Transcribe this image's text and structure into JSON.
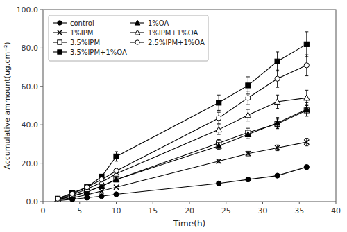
{
  "chart_data": {
    "type": "line",
    "x_label": "Time(h)",
    "y_label": "Accumulative ammount(ug.cm⁻²)",
    "x": [
      2,
      4,
      6,
      8,
      10,
      24,
      28,
      32,
      36
    ],
    "series": [
      {
        "name": "control",
        "color": "black",
        "marker": "circle-filled",
        "values": [
          0.5,
          1.2,
          2.0,
          2.8,
          3.8,
          9.5,
          11.5,
          13.5,
          18.0
        ],
        "errors": [
          0.1,
          0.2,
          0.2,
          0.3,
          0.4,
          0.5,
          0.7,
          0.8,
          1.0
        ]
      },
      {
        "name": "1%IPM",
        "color": "black",
        "marker": "x",
        "values": [
          0.8,
          2.0,
          3.5,
          5.5,
          7.5,
          21.0,
          25.0,
          28.0,
          31.0
        ],
        "errors": [
          0.1,
          0.2,
          0.3,
          0.4,
          0.5,
          1.0,
          1.2,
          1.5,
          2.0
        ]
      },
      {
        "name": "3.5%IPM",
        "color": "black",
        "marker": "square-open",
        "values": [
          1.0,
          2.8,
          5.2,
          8.0,
          11.5,
          30.5,
          36.0,
          40.5,
          47.5
        ],
        "errors": [
          0.1,
          0.3,
          0.4,
          0.6,
          0.8,
          1.8,
          2.2,
          2.5,
          3.0
        ]
      },
      {
        "name": "3.5%IPM+1%OA",
        "color": "black",
        "marker": "square-filled",
        "values": [
          1.5,
          4.5,
          7.5,
          13.0,
          23.5,
          51.5,
          60.5,
          73.0,
          82.0
        ],
        "errors": [
          0.2,
          0.5,
          0.8,
          1.2,
          2.5,
          4.0,
          4.5,
          5.0,
          6.5
        ]
      },
      {
        "name": "1%OA",
        "color": "black",
        "marker": "triangle-filled",
        "values": [
          1.0,
          2.8,
          5.0,
          8.0,
          11.5,
          29.0,
          35.0,
          41.0,
          48.0
        ],
        "errors": [
          0.1,
          0.3,
          0.4,
          0.6,
          0.8,
          1.8,
          2.2,
          2.8,
          3.5
        ]
      },
      {
        "name": "1%IPM+1%OA",
        "color": "black",
        "marker": "triangle-open",
        "values": [
          1.2,
          3.5,
          6.5,
          10.0,
          14.5,
          37.5,
          45.0,
          52.0,
          54.0
        ],
        "errors": [
          0.15,
          0.4,
          0.6,
          0.8,
          1.0,
          2.5,
          3.0,
          3.5,
          4.0
        ]
      },
      {
        "name": "2.5%IPM+1%OA",
        "color": "black",
        "marker": "circle-open",
        "values": [
          1.5,
          4.0,
          7.5,
          11.5,
          16.0,
          43.5,
          54.0,
          64.0,
          71.0
        ],
        "errors": [
          0.2,
          0.4,
          0.7,
          1.0,
          1.3,
          3.0,
          3.5,
          4.5,
          5.5
        ]
      }
    ],
    "xlim": [
      0,
      40
    ],
    "ylim": [
      0,
      100.0
    ],
    "xticks": [
      0,
      5,
      10,
      15,
      20,
      25,
      30,
      35,
      40
    ],
    "yticks": [
      {
        "value": 0.0,
        "label": "0.0"
      },
      {
        "value": 20.0,
        "label": "20.0"
      },
      {
        "value": 40.0,
        "label": "40.0"
      },
      {
        "value": 60.0,
        "label": "60.0"
      },
      {
        "value": 80.0,
        "label": "80.0"
      },
      {
        "value": 100.0,
        "label": "100.0"
      }
    ],
    "legend": "upper left"
  }
}
